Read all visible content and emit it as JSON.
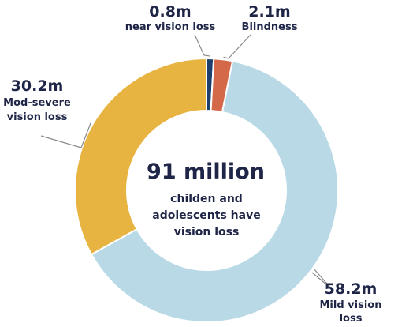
{
  "chart_data": {
    "type": "pie",
    "categories": [
      "near vision loss",
      "Blindness",
      "Mild vision loss",
      "Mod-severe vision loss"
    ],
    "values": [
      0.8,
      2.1,
      58.2,
      30.2
    ],
    "value_labels": [
      "0.8m",
      "2.1m",
      "58.2m",
      "30.2m"
    ],
    "label_lines": [
      [
        "near vision loss"
      ],
      [
        "Blindness"
      ],
      [
        "Mild vision",
        "loss"
      ],
      [
        "Mod-severe",
        "vision loss"
      ]
    ],
    "colors": [
      "#1c3f6e",
      "#d4694a",
      "#b9d9e6",
      "#e8b441"
    ],
    "donut": true,
    "center_title": "91 million",
    "center_text": [
      "childen and",
      "adolescents have",
      "vision loss"
    ]
  }
}
